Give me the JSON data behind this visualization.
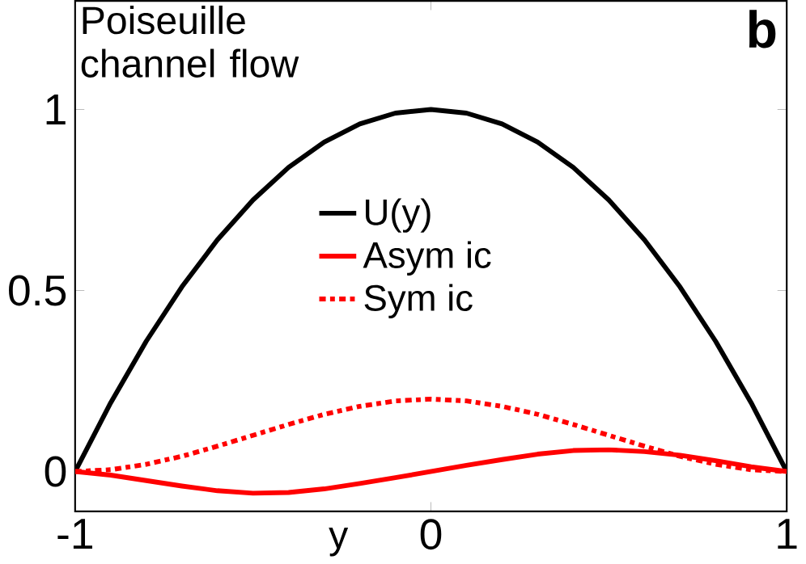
{
  "chart_data": {
    "type": "line",
    "xlabel": "y",
    "x": [
      -1,
      -0.9,
      -0.8,
      -0.7,
      -0.6,
      -0.5,
      -0.4,
      -0.3,
      -0.2,
      -0.1,
      0,
      0.1,
      0.2,
      0.3,
      0.4,
      0.5,
      0.6,
      0.7,
      0.8,
      0.9,
      1
    ],
    "series": [
      {
        "name": "U(y)",
        "color": "#000000",
        "line_style": "solid",
        "values": [
          0,
          0.19,
          0.36,
          0.51,
          0.64,
          0.75,
          0.84,
          0.91,
          0.96,
          0.99,
          1,
          0.99,
          0.96,
          0.91,
          0.84,
          0.75,
          0.64,
          0.51,
          0.36,
          0.19,
          0
        ]
      },
      {
        "name": "Asym ic",
        "color": "#ff0000",
        "line_style": "solid",
        "values": [
          0,
          -0.01,
          -0.025,
          -0.04,
          -0.053,
          -0.06,
          -0.058,
          -0.048,
          -0.033,
          -0.017,
          0,
          0.017,
          0.033,
          0.048,
          0.058,
          0.06,
          0.055,
          0.045,
          0.03,
          0.013,
          0
        ]
      },
      {
        "name": "Sym ic",
        "color": "#ff0000",
        "line_style": "dashdot",
        "values": [
          0,
          0.005,
          0.02,
          0.042,
          0.07,
          0.1,
          0.13,
          0.158,
          0.18,
          0.195,
          0.2,
          0.195,
          0.18,
          0.158,
          0.13,
          0.1,
          0.07,
          0.042,
          0.02,
          0.005,
          0
        ]
      }
    ],
    "xlim": [
      -1,
      1
    ],
    "ylim": [
      -0.11,
      1.3
    ],
    "xticks": [
      -1,
      0,
      1
    ],
    "yticks": [
      0,
      0.5,
      1
    ],
    "grid": false,
    "legend": "center",
    "marker": "none",
    "annotations": [
      "Poiseuille channel flow",
      "b"
    ]
  }
}
